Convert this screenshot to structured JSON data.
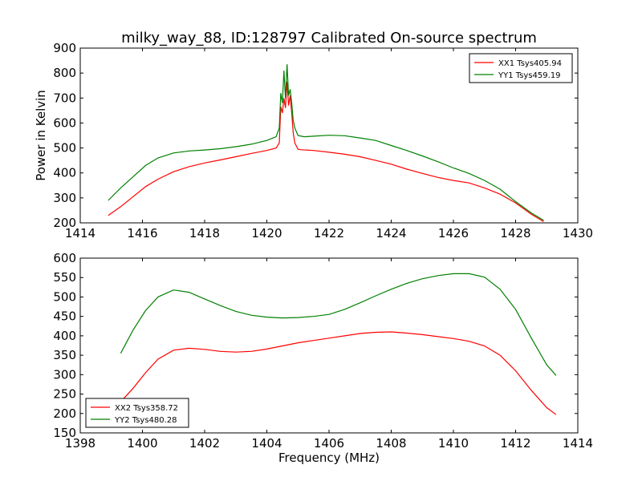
{
  "title": "milky_way_88, ID:128797 Calibrated On-source spectrum",
  "colors": {
    "xx": "#ff0000",
    "yy": "#008000"
  },
  "chart_data": [
    {
      "type": "line",
      "ylabel": "Power in Kelvin",
      "xlabel": "",
      "xlim": [
        1414,
        1430
      ],
      "ylim": [
        200,
        900
      ],
      "xticks": [
        1414,
        1416,
        1418,
        1420,
        1422,
        1424,
        1426,
        1428,
        1430
      ],
      "yticks": [
        200,
        300,
        400,
        500,
        600,
        700,
        800,
        900
      ],
      "grid": false,
      "legend_position": "top-right",
      "series": [
        {
          "name": "XX1 Tsys405.94",
          "color": "#ff0000",
          "x": [
            1414.9,
            1415.3,
            1415.7,
            1416.1,
            1416.5,
            1417.0,
            1417.5,
            1418.0,
            1418.5,
            1419.0,
            1419.5,
            1420.0,
            1420.3,
            1420.4,
            1420.45,
            1420.5,
            1420.55,
            1420.6,
            1420.65,
            1420.7,
            1420.75,
            1420.8,
            1420.85,
            1420.9,
            1421.0,
            1421.1,
            1421.5,
            1422.0,
            1422.5,
            1423.0,
            1423.5,
            1424.0,
            1424.5,
            1425.0,
            1425.5,
            1426.0,
            1426.5,
            1427.0,
            1427.5,
            1428.0,
            1428.5,
            1428.9
          ],
          "y": [
            230,
            265,
            305,
            345,
            375,
            405,
            425,
            440,
            452,
            465,
            478,
            490,
            500,
            520,
            665,
            640,
            700,
            660,
            765,
            670,
            710,
            640,
            560,
            520,
            495,
            493,
            490,
            483,
            475,
            465,
            450,
            435,
            415,
            398,
            382,
            370,
            360,
            340,
            315,
            280,
            235,
            205
          ]
        },
        {
          "name": "YY1 Tsys459.19",
          "color": "#008000",
          "x": [
            1414.9,
            1415.3,
            1415.7,
            1416.1,
            1416.5,
            1417.0,
            1417.5,
            1418.0,
            1418.5,
            1419.0,
            1419.5,
            1420.0,
            1420.3,
            1420.4,
            1420.45,
            1420.5,
            1420.55,
            1420.6,
            1420.65,
            1420.7,
            1420.75,
            1420.8,
            1420.85,
            1420.9,
            1421.0,
            1421.2,
            1421.5,
            1422.0,
            1422.5,
            1423.0,
            1423.5,
            1424.0,
            1424.5,
            1425.0,
            1425.5,
            1426.0,
            1426.5,
            1427.0,
            1427.5,
            1428.0,
            1428.5,
            1428.9
          ],
          "y": [
            290,
            340,
            385,
            430,
            460,
            480,
            488,
            492,
            497,
            505,
            515,
            530,
            545,
            580,
            720,
            680,
            810,
            700,
            835,
            710,
            735,
            680,
            610,
            580,
            550,
            545,
            547,
            551,
            549,
            540,
            530,
            510,
            490,
            468,
            445,
            420,
            398,
            370,
            335,
            285,
            240,
            210
          ]
        }
      ]
    },
    {
      "type": "line",
      "ylabel": "",
      "xlabel": "Frequency (MHz)",
      "xlim": [
        1398,
        1414
      ],
      "ylim": [
        150,
        600
      ],
      "xticks": [
        1398,
        1400,
        1402,
        1404,
        1406,
        1408,
        1410,
        1412,
        1414
      ],
      "yticks": [
        150,
        200,
        250,
        300,
        350,
        400,
        450,
        500,
        550,
        600
      ],
      "grid": false,
      "legend_position": "bottom-left",
      "series": [
        {
          "name": "XX2 Tsys358.72",
          "color": "#ff0000",
          "x": [
            1399.3,
            1399.7,
            1400.1,
            1400.5,
            1401.0,
            1401.5,
            1402.0,
            1402.5,
            1403.0,
            1403.5,
            1404.0,
            1404.5,
            1405.0,
            1405.5,
            1406.0,
            1406.5,
            1407.0,
            1407.5,
            1408.0,
            1408.5,
            1409.0,
            1409.5,
            1410.0,
            1410.5,
            1411.0,
            1411.5,
            1412.0,
            1412.5,
            1413.0,
            1413.3
          ],
          "y": [
            230,
            265,
            305,
            340,
            363,
            368,
            365,
            360,
            358,
            360,
            366,
            374,
            382,
            388,
            394,
            400,
            406,
            409,
            410,
            407,
            403,
            398,
            393,
            386,
            374,
            350,
            310,
            260,
            215,
            197
          ]
        },
        {
          "name": "YY2 Tsys480.28",
          "color": "#008000",
          "x": [
            1399.3,
            1399.7,
            1400.1,
            1400.5,
            1401.0,
            1401.5,
            1402.0,
            1402.5,
            1403.0,
            1403.5,
            1404.0,
            1404.5,
            1405.0,
            1405.5,
            1406.0,
            1406.5,
            1407.0,
            1407.5,
            1408.0,
            1408.5,
            1409.0,
            1409.5,
            1410.0,
            1410.5,
            1411.0,
            1411.5,
            1412.0,
            1412.5,
            1413.0,
            1413.3
          ],
          "y": [
            355,
            415,
            465,
            500,
            518,
            512,
            495,
            478,
            463,
            453,
            448,
            446,
            447,
            450,
            455,
            468,
            485,
            503,
            520,
            535,
            547,
            555,
            560,
            560,
            551,
            520,
            468,
            395,
            325,
            298
          ]
        }
      ]
    }
  ]
}
